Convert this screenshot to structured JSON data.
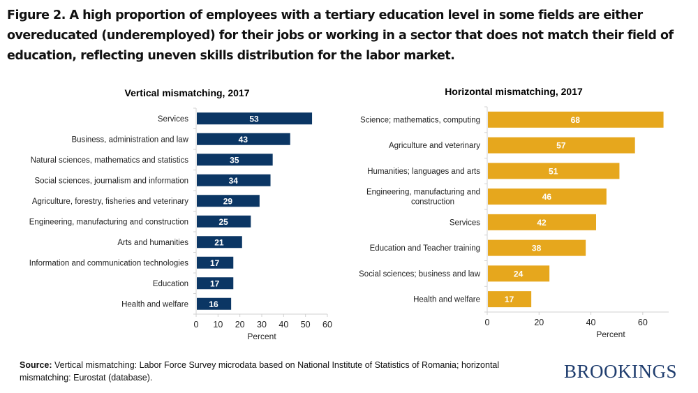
{
  "title": "Figure 2. A high proportion of employees with a tertiary education level in some fields are either overeducated (underemployed) for their jobs or working in a sector that does not match their field of education, reflecting uneven skills distribution for the labor market.",
  "source_label": "Source:",
  "source_text": "Vertical mismatching: Labor Force Survey microdata based on National Institute of Statistics of Romania; horizontal mismatching: Eurostat (database).",
  "logo": "BROOKINGS",
  "colors": {
    "vertical": "#0b3664",
    "horizontal": "#e6a71d",
    "logo": "#1f3d6e"
  },
  "chart_data": [
    {
      "type": "bar",
      "orientation": "horizontal",
      "title": "Vertical mismatching, 2017",
      "xlabel": "Percent",
      "categories": [
        "Services",
        "Business, administration and law",
        "Natural sciences, mathematics and statistics",
        "Social sciences, journalism and information",
        "Agriculture, forestry, fisheries and veterinary",
        "Engineering, manufacturing and construction",
        "Arts and humanities",
        "Information and communication technologies",
        "Education",
        "Health and welfare"
      ],
      "values": [
        53,
        43,
        35,
        34,
        29,
        25,
        21,
        17,
        17,
        16
      ],
      "xlim": [
        0,
        60
      ],
      "xticks": [
        0,
        10,
        20,
        30,
        40,
        50,
        60
      ],
      "data_labels": true,
      "grid": false
    },
    {
      "type": "bar",
      "orientation": "horizontal",
      "title": "Horizontal mismatching, 2017",
      "xlabel": "Percent",
      "categories": [
        "Science; mathematics, computing",
        "Agriculture and veterinary",
        "Humanities; languages and arts",
        "Engineering, manufacturing and|construction",
        "Services",
        "Education and Teacher training",
        "Social sciences; business and law",
        "Health and welfare"
      ],
      "values": [
        68,
        57,
        51,
        46,
        42,
        38,
        24,
        17
      ],
      "xlim": [
        0,
        70
      ],
      "xticks": [
        0,
        20,
        40,
        60
      ],
      "data_labels": true,
      "grid": false
    }
  ]
}
